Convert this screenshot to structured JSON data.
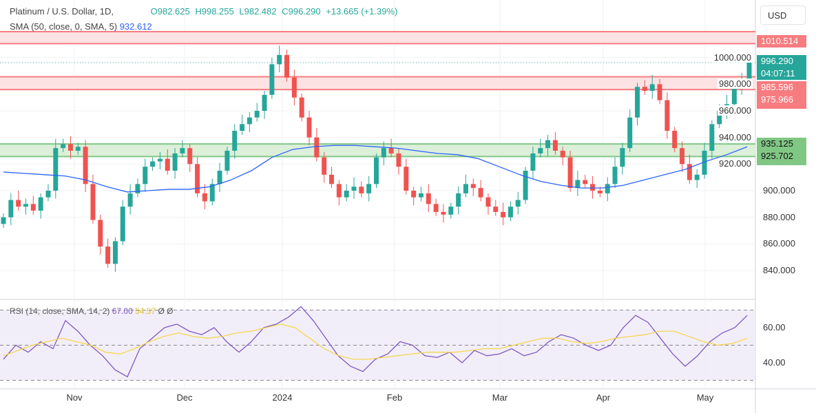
{
  "header": {
    "symbol": "Platinum / U.S. Dollar, 1D,",
    "open": "O982.625",
    "high": "H998.255",
    "low": "L982.482",
    "close": "C996.290",
    "change": "+13.665 (+1.39%)",
    "sma_label": "SMA (50, close, 0, SMA, 5)",
    "sma_value": "932.612"
  },
  "currency": "USD",
  "price_labels": {
    "zone1": "1010.514",
    "current": "996.290",
    "countdown": "04:07:11",
    "zone2_top": "985.596",
    "zone2_bottom": "975.966",
    "zone3_top": "935.125",
    "zone3_bottom": "925.702"
  },
  "rsi": {
    "label": "RSI (14, close, SMA, 14, 2)",
    "value": "67.00",
    "sma_value": "54.57",
    "extra": "Ø Ø",
    "ticks": [
      "60.00",
      "40.00"
    ]
  },
  "colors": {
    "up": "#26a69a",
    "down": "#ef5350",
    "sma": "#2962ff",
    "rsi": "#7e57c2",
    "rsi_sma": "#f5d64e",
    "red_zone": "#f77c80",
    "green_zone": "#81c784"
  },
  "chart_data": {
    "type": "candlestick",
    "ylim": [
      830,
      1022
    ],
    "yticks": [
      "1000.000",
      "980.000",
      "960.000",
      "940.000",
      "920.000",
      "900.000",
      "880.000",
      "860.000",
      "840.000"
    ],
    "ytick_values": [
      1000,
      980,
      960,
      940,
      920,
      900,
      880,
      860,
      840
    ],
    "xticks": [
      "Nov",
      "Dec",
      "2024",
      "Feb",
      "Mar",
      "Apr",
      "May"
    ],
    "closes": [
      880,
      893,
      888,
      890,
      885,
      895,
      900,
      932,
      935,
      930,
      933,
      905,
      878,
      858,
      845,
      862,
      888,
      898,
      905,
      918,
      922,
      924,
      915,
      928,
      932,
      920,
      898,
      892,
      905,
      915,
      930,
      945,
      950,
      955,
      960,
      972,
      995,
      1002,
      985,
      970,
      955,
      940,
      925,
      912,
      905,
      895,
      900,
      903,
      898,
      905,
      925,
      932,
      928,
      918,
      900,
      895,
      898,
      890,
      884,
      882,
      888,
      898,
      905,
      902,
      895,
      888,
      884,
      880,
      888,
      893,
      915,
      928,
      932,
      938,
      930,
      925,
      902,
      908,
      905,
      900,
      898,
      905,
      918,
      932,
      955,
      978,
      975,
      980,
      968,
      945,
      932,
      920,
      908,
      912,
      930,
      950,
      960,
      965,
      978,
      982.6,
      996.29
    ],
    "sma50": [
      914,
      913,
      912,
      911,
      908,
      903,
      899,
      900,
      901,
      901,
      903,
      908,
      915,
      925,
      931,
      933,
      934,
      934,
      933,
      932,
      930,
      928,
      927,
      924,
      918,
      912,
      907,
      904,
      902,
      902,
      904,
      908,
      912,
      916,
      922,
      927,
      933
    ],
    "zones": [
      {
        "top": 1019.5,
        "bottom": 1010.514,
        "color": "red"
      },
      {
        "top": 985.596,
        "bottom": 975.966,
        "color": "red"
      },
      {
        "top": 935.125,
        "bottom": 925.702,
        "color": "green"
      }
    ],
    "rsi_values": [
      42,
      50,
      46,
      52,
      48,
      64,
      58,
      50,
      44,
      36,
      32,
      48,
      54,
      60,
      62,
      58,
      56,
      60,
      52,
      46,
      52,
      60,
      62,
      66,
      72,
      64,
      54,
      44,
      38,
      35,
      42,
      45,
      52,
      50,
      44,
      43,
      46,
      40,
      47,
      44,
      45,
      48,
      44,
      46,
      52,
      56,
      54,
      50,
      47,
      50,
      60,
      67,
      63,
      54,
      45,
      38,
      44,
      52,
      57,
      60,
      67
    ],
    "rsi_sma": [
      44,
      47,
      50,
      52,
      54,
      52,
      50,
      46,
      45,
      48,
      52,
      55,
      57,
      55,
      54,
      55,
      57,
      58,
      60,
      62,
      60,
      54,
      48,
      44,
      42,
      42,
      43,
      44,
      45,
      46,
      46,
      46,
      47,
      48,
      48,
      50,
      52,
      54,
      54,
      52,
      51,
      52,
      54,
      55,
      56,
      58,
      58,
      55,
      52,
      50,
      51,
      54
    ],
    "rsi_ylim": [
      25,
      75
    ]
  }
}
